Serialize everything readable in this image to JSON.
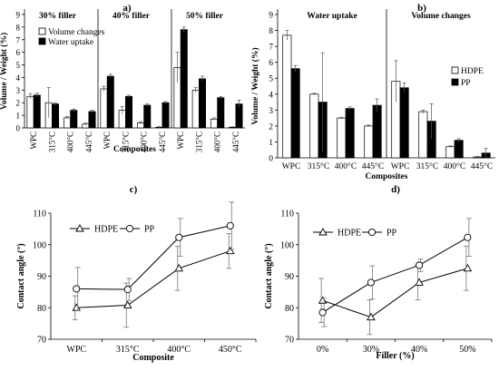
{
  "chart_data": [
    {
      "id": "a",
      "type": "bar",
      "panel_label": "a)",
      "ylabel": "Volume / Weight (%)",
      "xlabel": "Composites",
      "ylim": [
        0,
        9
      ],
      "yticks": [
        0,
        1,
        2,
        3,
        4,
        5,
        6,
        7,
        8,
        9
      ],
      "grid": false,
      "legend": {
        "position": "top-left",
        "entries": [
          "Volume changes",
          "Water uptake"
        ]
      },
      "groups": [
        {
          "label": "30% filler",
          "categories": [
            "WPC",
            "315°C",
            "400°C",
            "445°C"
          ]
        },
        {
          "label": "40% filler",
          "categories": [
            "WPC",
            "315°C",
            "400°C",
            "445°C"
          ]
        },
        {
          "label": "50% filler",
          "categories": [
            "WPC",
            "315°C",
            "400°C",
            "445°C"
          ]
        }
      ],
      "series": [
        {
          "name": "Volume changes",
          "color": "#ffffff",
          "values": [
            2.5,
            2.0,
            0.8,
            0.3,
            3.1,
            1.4,
            0.4,
            0.05,
            4.8,
            3.0,
            0.7,
            0.05
          ],
          "errors": [
            0.2,
            1.2,
            0.1,
            0.1,
            0.2,
            0.3,
            0.1,
            0.05,
            1.2,
            0.2,
            0.1,
            0.05
          ]
        },
        {
          "name": "Water uptake",
          "color": "#000000",
          "values": [
            2.6,
            1.9,
            1.4,
            1.3,
            4.1,
            2.5,
            1.8,
            2.0,
            7.8,
            3.9,
            2.4,
            1.9
          ],
          "errors": [
            0.15,
            0.1,
            0.1,
            0.1,
            0.15,
            0.1,
            0.1,
            0.1,
            0.2,
            0.2,
            0.1,
            0.3
          ]
        }
      ]
    },
    {
      "id": "b",
      "type": "bar",
      "panel_label": "b)",
      "ylabel": "Volume / Weight (%)",
      "xlabel": "Composites",
      "ylim": [
        0,
        9
      ],
      "yticks": [
        0,
        1,
        2,
        3,
        4,
        5,
        6,
        7,
        8,
        9
      ],
      "grid": false,
      "legend": {
        "position": "right",
        "entries": [
          "HDPE",
          "PP"
        ]
      },
      "groups": [
        {
          "label": "Water uptake",
          "categories": [
            "WPC",
            "315°C",
            "400°C",
            "445°C"
          ]
        },
        {
          "label": "Volume changes",
          "categories": [
            "WPC",
            "315°C",
            "400°C",
            "445°C"
          ]
        }
      ],
      "series": [
        {
          "name": "HDPE",
          "color": "#ffffff",
          "values": [
            7.7,
            4.0,
            2.5,
            2.0,
            4.8,
            2.9,
            0.7,
            0.05
          ],
          "errors": [
            0.3,
            0.05,
            0.05,
            0.05,
            1.3,
            0.1,
            0.05,
            0.05
          ]
        },
        {
          "name": "PP",
          "color": "#000000",
          "values": [
            5.6,
            3.5,
            3.1,
            3.3,
            4.4,
            2.3,
            1.1,
            0.3
          ],
          "errors": [
            0.2,
            3.1,
            0.1,
            0.4,
            0.3,
            1.1,
            0.1,
            0.3
          ]
        }
      ]
    },
    {
      "id": "c",
      "type": "line",
      "panel_label": "c)",
      "ylabel": "Contact angle (°)",
      "xlabel": "Composite",
      "categories": [
        "WPC",
        "315°C",
        "400°C",
        "450°C"
      ],
      "ylim": [
        70,
        110
      ],
      "yticks": [
        70,
        80,
        90,
        100,
        110
      ],
      "grid": false,
      "legend": {
        "position": "top-left",
        "entries": [
          "HDPE",
          "PP"
        ]
      },
      "series": [
        {
          "name": "HDPE",
          "marker": "triangle",
          "values": [
            80,
            80.8,
            92.5,
            98
          ],
          "errors": [
            3.8,
            7,
            7,
            5.5
          ]
        },
        {
          "name": "PP",
          "marker": "circle",
          "values": [
            86,
            85.8,
            102.3,
            106
          ],
          "errors": [
            6.8,
            3.5,
            6,
            7.5
          ]
        }
      ]
    },
    {
      "id": "d",
      "type": "line",
      "panel_label": "d)",
      "ylabel": "Contact angle (°)",
      "xlabel": "Filler (%)",
      "categories": [
        "0%",
        "30%",
        "40%",
        "50%"
      ],
      "ylim": [
        70,
        110
      ],
      "yticks": [
        70,
        80,
        90,
        100,
        110
      ],
      "grid": false,
      "legend": {
        "position": "top-left",
        "entries": [
          "HDPE",
          "PP"
        ]
      },
      "series": [
        {
          "name": "HDPE",
          "marker": "triangle",
          "values": [
            82.3,
            77,
            88,
            92.5
          ],
          "errors": [
            7,
            5.5,
            5.5,
            7
          ]
        },
        {
          "name": "PP",
          "marker": "circle",
          "values": [
            78.5,
            88,
            93.5,
            102.3
          ],
          "errors": [
            4.5,
            5.3,
            2,
            6
          ]
        }
      ]
    }
  ]
}
